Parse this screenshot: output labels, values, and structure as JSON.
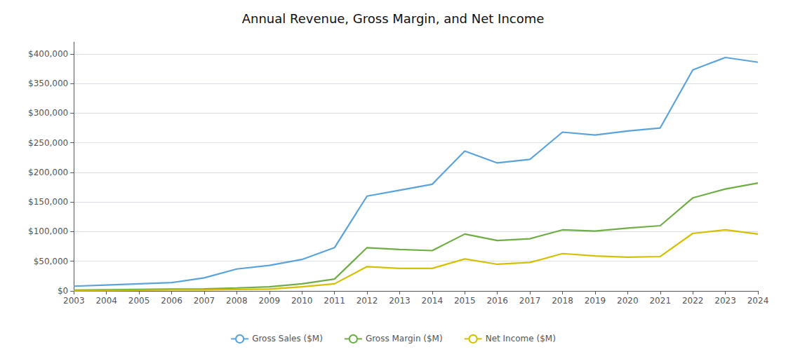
{
  "chart_data": {
    "type": "line",
    "title": "Annual Revenue, Gross Margin, and Net Income",
    "x": [
      2003,
      2004,
      2005,
      2006,
      2007,
      2008,
      2009,
      2010,
      2011,
      2012,
      2013,
      2014,
      2015,
      2016,
      2017,
      2018,
      2019,
      2020,
      2021,
      2022,
      2023,
      2024
    ],
    "series": [
      {
        "name": "Gross Sales ($M)",
        "color": "#5ba3d9",
        "values": [
          8000,
          10000,
          12000,
          14000,
          22000,
          37000,
          43000,
          53000,
          73000,
          160000,
          170000,
          180000,
          236000,
          216000,
          222000,
          268000,
          263000,
          270000,
          275000,
          373000,
          394000,
          386000
        ]
      },
      {
        "name": "Gross Margin ($M)",
        "color": "#70ad47",
        "values": [
          1500,
          2000,
          2500,
          3000,
          3500,
          5000,
          7000,
          12000,
          20000,
          73000,
          70000,
          68000,
          96000,
          85000,
          88000,
          103000,
          101000,
          106000,
          110000,
          157000,
          172000,
          182000
        ]
      },
      {
        "name": "Net Income ($M)",
        "color": "#d4c000",
        "values": [
          500,
          800,
          1200,
          1800,
          2000,
          2500,
          3000,
          7000,
          12000,
          41000,
          38000,
          38000,
          54000,
          45000,
          48000,
          63000,
          59000,
          57000,
          58000,
          97000,
          103000,
          96000
        ]
      }
    ],
    "xlim": [
      2003,
      2024
    ],
    "xticks": [
      2003,
      2004,
      2005,
      2006,
      2007,
      2008,
      2009,
      2010,
      2011,
      2012,
      2013,
      2014,
      2015,
      2016,
      2017,
      2018,
      2019,
      2020,
      2021,
      2022,
      2023,
      2024
    ],
    "ylim": [
      0,
      420000
    ],
    "yticks": [
      {
        "value": 0,
        "label": "$0"
      },
      {
        "value": 50000,
        "label": "$50,000"
      },
      {
        "value": 100000,
        "label": "$100,000"
      },
      {
        "value": 150000,
        "label": "$150,000"
      },
      {
        "value": 200000,
        "label": "$200,000"
      },
      {
        "value": 250000,
        "label": "$250,000"
      },
      {
        "value": 300000,
        "label": "$300,000"
      },
      {
        "value": 350000,
        "label": "$350,000"
      },
      {
        "value": 400000,
        "label": "$400,000"
      }
    ],
    "grid": true,
    "legend": "bottom"
  }
}
